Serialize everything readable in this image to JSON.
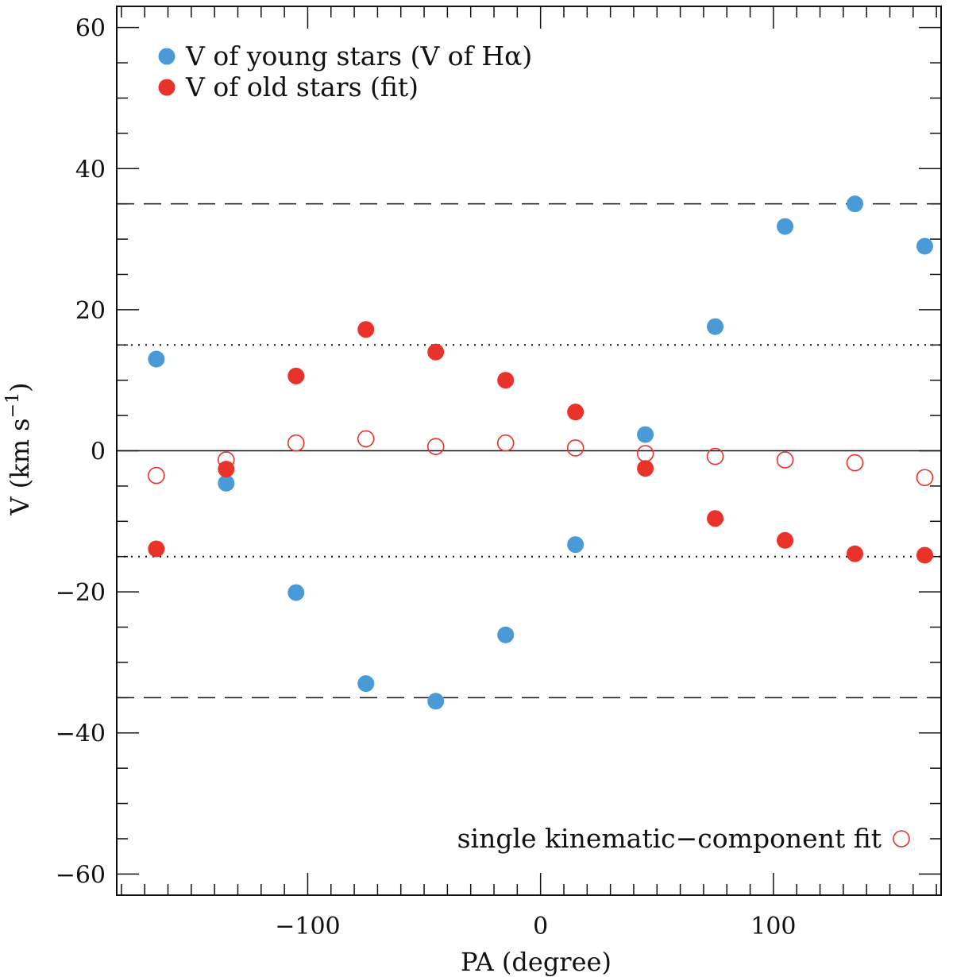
{
  "chart_data": {
    "type": "scatter",
    "xlabel": "PA (degree)",
    "ylabel": "V (km s",
    "ylabel_sup": "−1",
    "ylabel_tail": ")",
    "xlim": [
      -182,
      172
    ],
    "ylim": [
      -63,
      63
    ],
    "x_ticks": [
      -100,
      0,
      100
    ],
    "x_tick_labels": [
      "−100",
      "0",
      "100"
    ],
    "y_ticks": [
      -60,
      -40,
      -20,
      0,
      20,
      40,
      60
    ],
    "y_tick_labels": [
      "−60",
      "−40",
      "−20",
      "0",
      "20",
      "40",
      "60"
    ],
    "x_minor_step": 10,
    "y_minor_step": 5,
    "reference_lines": {
      "solid": [
        0
      ],
      "dashed": [
        35,
        -35
      ],
      "dotted": [
        15,
        -15
      ]
    },
    "series": [
      {
        "name": "V of young stars (V of Hα)",
        "color": "#4a9ad8",
        "marker": "filled-circle",
        "x": [
          -165,
          -135,
          -105,
          -75,
          -45,
          -15,
          15,
          45,
          75,
          105,
          135,
          165
        ],
        "y": [
          13,
          -4.6,
          -20.1,
          -33,
          -35.5,
          -26.1,
          -13.3,
          2.3,
          17.6,
          31.8,
          35,
          29
        ]
      },
      {
        "name": "V of old stars (fit)",
        "color": "#e8322a",
        "marker": "filled-circle",
        "x": [
          -165,
          -135,
          -105,
          -75,
          -45,
          -15,
          15,
          45,
          75,
          105,
          135,
          165
        ],
        "y": [
          -13.9,
          -2.6,
          10.6,
          17.2,
          14,
          10,
          5.5,
          -2.5,
          -9.6,
          -12.7,
          -14.6,
          -14.8
        ]
      },
      {
        "name": "single kinematic−component fit",
        "color": "#e8322a",
        "marker": "open-circle",
        "x": [
          -165,
          -135,
          -105,
          -75,
          -45,
          -15,
          15,
          45,
          75,
          105,
          135,
          165
        ],
        "y": [
          -3.5,
          -1.3,
          1.1,
          1.7,
          0.6,
          1.1,
          0.4,
          -0.4,
          -0.8,
          -1.3,
          -1.7,
          -3.8
        ]
      }
    ]
  }
}
